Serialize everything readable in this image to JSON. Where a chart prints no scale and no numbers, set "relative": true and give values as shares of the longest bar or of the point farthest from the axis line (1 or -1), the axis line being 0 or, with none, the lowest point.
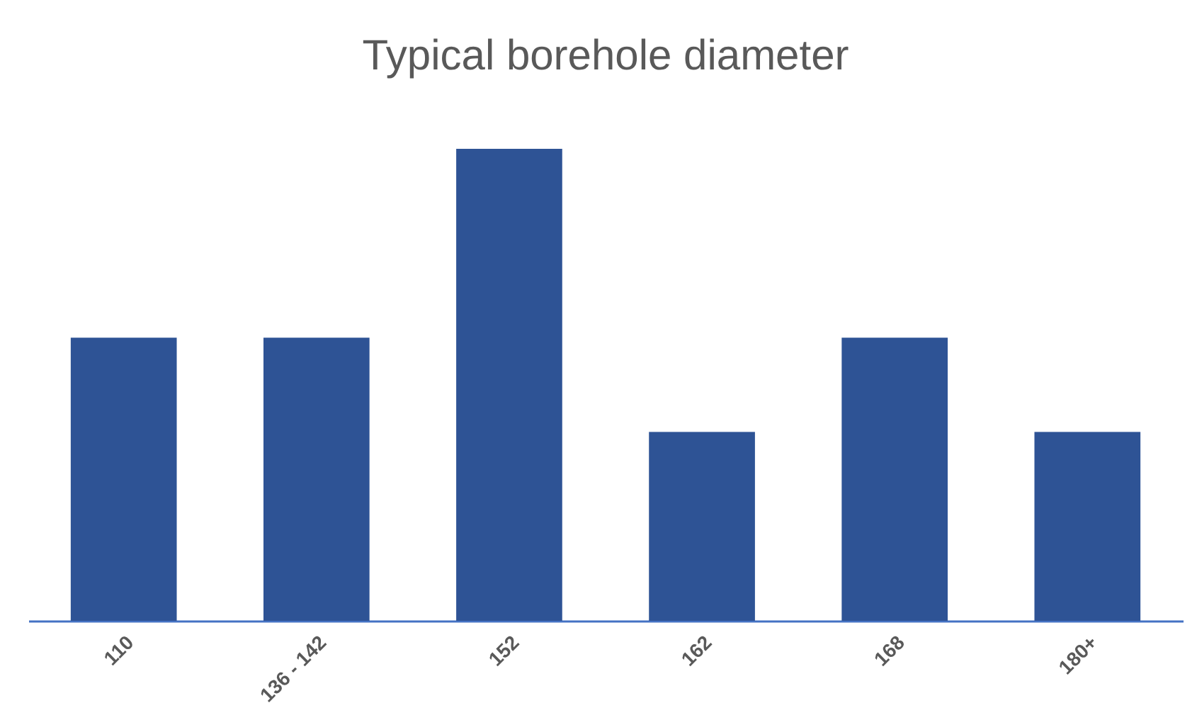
{
  "chart_data": {
    "type": "bar",
    "title": "Typical borehole diameter",
    "categories": [
      "110",
      "136 - 142",
      "152",
      "162",
      "168",
      "180+"
    ],
    "values": [
      0.6,
      0.6,
      1,
      0.4,
      0.6,
      0.4
    ],
    "color": "#2e5395",
    "relative": true
  }
}
